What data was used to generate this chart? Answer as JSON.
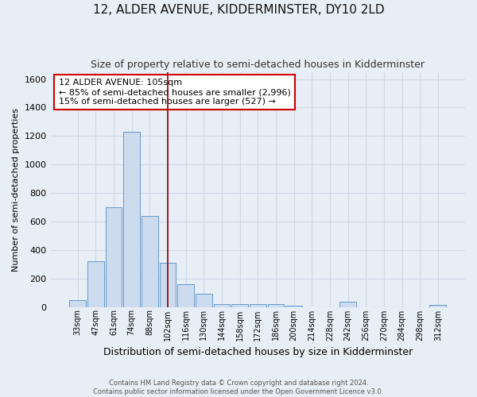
{
  "title": "12, ALDER AVENUE, KIDDERMINSTER, DY10 2LD",
  "subtitle": "Size of property relative to semi-detached houses in Kidderminster",
  "xlabel": "Distribution of semi-detached houses by size in Kidderminster",
  "ylabel": "Number of semi-detached properties",
  "footer_line1": "Contains HM Land Registry data © Crown copyright and database right 2024.",
  "footer_line2": "Contains public sector information licensed under the Open Government Licence v3.0.",
  "categories": [
    "33sqm",
    "47sqm",
    "61sqm",
    "74sqm",
    "88sqm",
    "102sqm",
    "116sqm",
    "130sqm",
    "144sqm",
    "158sqm",
    "172sqm",
    "186sqm",
    "200sqm",
    "214sqm",
    "228sqm",
    "242sqm",
    "256sqm",
    "270sqm",
    "284sqm",
    "298sqm",
    "312sqm"
  ],
  "values": [
    50,
    320,
    700,
    1230,
    640,
    310,
    160,
    90,
    20,
    20,
    20,
    20,
    10,
    0,
    0,
    35,
    0,
    0,
    0,
    0,
    15
  ],
  "bar_color": "#ccdcee",
  "bar_edge_color": "#6699cc",
  "annotation_text_line1": "12 ALDER AVENUE: 105sqm",
  "annotation_text_line2": "← 85% of semi-detached houses are smaller (2,996)",
  "annotation_text_line3": "15% of semi-detached houses are larger (527) →",
  "annotation_box_color": "#ffffff",
  "annotation_box_edge_color": "#cc0000",
  "vline_color": "#8b0000",
  "ylim": [
    0,
    1650
  ],
  "yticks": [
    0,
    200,
    400,
    600,
    800,
    1000,
    1200,
    1400,
    1600
  ],
  "background_color": "#e8eef5",
  "grid_color": "#d0d8e8",
  "title_fontsize": 11,
  "subtitle_fontsize": 9,
  "xlabel_fontsize": 9,
  "ylabel_fontsize": 8,
  "annotation_fontsize": 8
}
